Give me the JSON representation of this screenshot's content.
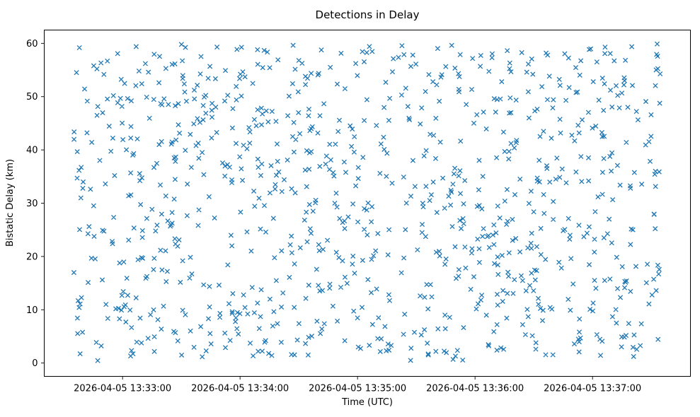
{
  "chart_data": {
    "type": "scatter",
    "title": "Detections in Delay",
    "xlabel": "Time (UTC)",
    "ylabel": "Bistatic Delay (km)",
    "marker": "x",
    "marker_color": "#1f77b4",
    "grid": false,
    "legend": null,
    "x_axis": {
      "unit": "seconds since 2026-04-05 13:32:20 UTC",
      "domain": [
        0,
        330
      ],
      "ticks": [
        {
          "value": 40,
          "label": "2026-04-05 13:33:00"
        },
        {
          "value": 100,
          "label": "2026-04-05 13:34:00"
        },
        {
          "value": 160,
          "label": "2026-04-05 13:35:00"
        },
        {
          "value": 220,
          "label": "2026-04-05 13:36:00"
        },
        {
          "value": 280,
          "label": "2026-04-05 13:37:00"
        }
      ]
    },
    "y_axis": {
      "domain": [
        -2.5,
        62.5
      ],
      "ticks": [
        0,
        10,
        20,
        30,
        40,
        50,
        60
      ]
    },
    "points": {
      "description": "dense uniform random scatter of detections",
      "distribution": "uniform",
      "n": 1000,
      "seed": 7,
      "x_range": [
        15,
        315
      ],
      "y_range": [
        0.3,
        59.9
      ]
    }
  }
}
